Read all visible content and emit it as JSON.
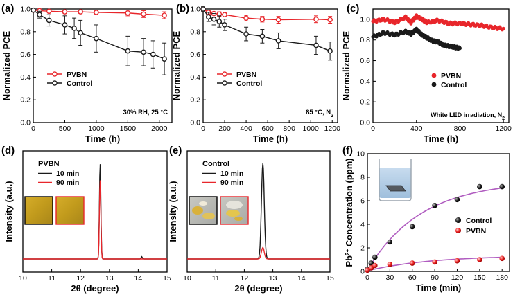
{
  "colors": {
    "red": "#e8262b",
    "black": "#1a1a1a",
    "purple": "#b05cc0",
    "film_yellow": "#c9a31e",
    "film_dark": "#8f7418",
    "frame_black": "#000000",
    "frame_red": "#e8262b",
    "pink": "#ff5a5a",
    "beaker_water": "#b8d4ea"
  },
  "chart_data": [
    {
      "panel": "(a)",
      "type": "line",
      "xlabel": "Time (h)",
      "ylabel": "Normalized PCE",
      "xlim": [
        0,
        2200
      ],
      "ylim": [
        0.0,
        1.0
      ],
      "xticks": [
        0,
        500,
        1000,
        1500,
        2000
      ],
      "yticks": [
        0.0,
        0.2,
        0.4,
        0.6,
        0.8,
        1.0
      ],
      "annotation": "30% RH, 25 °C",
      "legend": [
        "PVBN",
        "Control"
      ],
      "series": [
        {
          "name": "PVBN",
          "color": "red",
          "marker": "circle-open",
          "x": [
            0,
            100,
            250,
            500,
            750,
            1000,
            1500,
            1750,
            2080
          ],
          "y": [
            0.99,
            0.985,
            0.98,
            0.975,
            0.975,
            0.97,
            0.965,
            0.955,
            0.945
          ],
          "err": [
            0.01,
            0.01,
            0.01,
            0.015,
            0.015,
            0.02,
            0.025,
            0.03,
            0.03
          ]
        },
        {
          "name": "Control",
          "color": "black",
          "marker": "circle-open",
          "x": [
            0,
            100,
            250,
            500,
            650,
            750,
            1000,
            1500,
            1750,
            1900,
            2080
          ],
          "y": [
            0.99,
            0.95,
            0.9,
            0.86,
            0.83,
            0.79,
            0.74,
            0.63,
            0.62,
            0.6,
            0.56
          ],
          "err": [
            0.01,
            0.03,
            0.05,
            0.08,
            0.09,
            0.11,
            0.12,
            0.13,
            0.12,
            0.12,
            0.14
          ]
        }
      ]
    },
    {
      "panel": "(b)",
      "type": "line",
      "xlabel": "Time (h)",
      "ylabel": "Normalized PCE",
      "xlim": [
        0,
        1250
      ],
      "ylim": [
        0.0,
        1.0
      ],
      "xticks": [
        0,
        200,
        400,
        600,
        800,
        1000,
        1200
      ],
      "yticks": [
        0.0,
        0.2,
        0.4,
        0.6,
        0.8,
        1.0
      ],
      "annotation": "85 °C, N",
      "annotation_sub": "2",
      "legend": [
        "PVBN",
        "Control"
      ],
      "series": [
        {
          "name": "PVBN",
          "color": "red",
          "marker": "circle-open",
          "x": [
            0,
            50,
            100,
            150,
            200,
            400,
            550,
            700,
            1050,
            1180
          ],
          "y": [
            1.0,
            0.97,
            0.96,
            0.955,
            0.95,
            0.92,
            0.91,
            0.905,
            0.91,
            0.905
          ],
          "err": [
            0.01,
            0.015,
            0.015,
            0.02,
            0.02,
            0.025,
            0.025,
            0.03,
            0.03,
            0.03
          ]
        },
        {
          "name": "Control",
          "color": "black",
          "marker": "circle-open",
          "x": [
            0,
            50,
            100,
            150,
            200,
            400,
            550,
            700,
            1050,
            1180
          ],
          "y": [
            1.0,
            0.93,
            0.91,
            0.89,
            0.86,
            0.78,
            0.76,
            0.72,
            0.68,
            0.63
          ],
          "err": [
            0.02,
            0.04,
            0.05,
            0.05,
            0.05,
            0.06,
            0.06,
            0.07,
            0.08,
            0.08
          ]
        }
      ]
    },
    {
      "panel": "(c)",
      "type": "scatter",
      "xlabel": "Time (h)",
      "ylabel": "Normalized PCE",
      "xlim": [
        0,
        1250
      ],
      "ylim": [
        0.0,
        1.1
      ],
      "xticks": [
        0,
        400,
        800,
        1200
      ],
      "yticks": [
        0.0,
        0.2,
        0.4,
        0.6,
        0.8,
        1.0
      ],
      "annotation": "White LED irradiation, N",
      "annotation_sub": "2",
      "legend": [
        "PVBN",
        "Control"
      ],
      "series": [
        {
          "name": "PVBN",
          "color": "red",
          "marker": "circle-filled",
          "x": [
            0,
            100,
            200,
            300,
            350,
            400,
            450,
            500,
            600,
            700,
            800,
            900,
            1000,
            1100,
            1200
          ],
          "y": [
            0.98,
            1.0,
            0.97,
            1.02,
            0.97,
            1.03,
            1.0,
            0.97,
            0.99,
            0.96,
            0.96,
            0.95,
            0.94,
            0.92,
            0.91
          ]
        },
        {
          "name": "Control",
          "color": "black",
          "marker": "circle-filled",
          "x": [
            0,
            100,
            200,
            300,
            350,
            400,
            450,
            500,
            550,
            600,
            650,
            700,
            750,
            800
          ],
          "y": [
            0.83,
            0.87,
            0.85,
            0.88,
            0.86,
            0.9,
            0.85,
            0.82,
            0.79,
            0.78,
            0.75,
            0.74,
            0.73,
            0.72
          ]
        }
      ]
    },
    {
      "panel": "(d)",
      "type": "line",
      "xlabel": "2θ (degree)",
      "ylabel": "Intensity (a.u.)",
      "xlim": [
        10,
        15
      ],
      "xticks": [
        10,
        11,
        12,
        13,
        14,
        15
      ],
      "title": "PVBN",
      "legend": [
        "10 min",
        "90 min"
      ],
      "series": [
        {
          "name": "10 min",
          "color": "black",
          "peak_center": 12.68,
          "peak_height": 1.0,
          "peak_width": 0.035,
          "minor_peak": [
            14.12,
            0.025
          ]
        },
        {
          "name": "90 min",
          "color": "red",
          "peak_center": 12.68,
          "peak_height": 0.83,
          "peak_width": 0.035
        }
      ]
    },
    {
      "panel": "(e)",
      "type": "line",
      "xlabel": "2θ (degree)",
      "ylabel": "Intensity (a.u.)",
      "xlim": [
        10,
        15
      ],
      "xticks": [
        10,
        11,
        12,
        13,
        14,
        15
      ],
      "title": "Control",
      "legend": [
        "10 min",
        "90 min"
      ],
      "series": [
        {
          "name": "10 min",
          "color": "black",
          "peak_center": 12.65,
          "peak_height": 1.0,
          "peak_width": 0.07
        },
        {
          "name": "90 min",
          "color": "red",
          "peak_center": 12.65,
          "peak_height": 0.12,
          "peak_width": 0.07
        }
      ]
    },
    {
      "panel": "(f)",
      "type": "scatter",
      "xlabel": "Time (min)",
      "ylabel": "Pb Concentration (ppm)",
      "ylabel_sup": "2+",
      "xlim": [
        0,
        190
      ],
      "ylim": [
        0,
        10
      ],
      "xticks": [
        0,
        30,
        60,
        90,
        120,
        150,
        180
      ],
      "yticks": [
        0,
        2,
        4,
        6,
        8,
        10
      ],
      "legend": [
        "Control",
        "PVBN"
      ],
      "series": [
        {
          "name": "Control",
          "color": "black",
          "marker": "ball",
          "x": [
            0,
            5,
            10,
            30,
            60,
            90,
            120,
            150,
            180
          ],
          "y": [
            0.2,
            0.7,
            1.2,
            2.5,
            3.8,
            5.6,
            6.1,
            7.2,
            7.2
          ]
        },
        {
          "name": "PVBN",
          "color": "red",
          "marker": "ball",
          "x": [
            0,
            5,
            10,
            30,
            60,
            90,
            120,
            150,
            180
          ],
          "y": [
            0.1,
            0.3,
            0.5,
            0.6,
            0.7,
            0.8,
            0.9,
            1.0,
            1.1
          ]
        }
      ],
      "fit_color": "purple"
    }
  ]
}
